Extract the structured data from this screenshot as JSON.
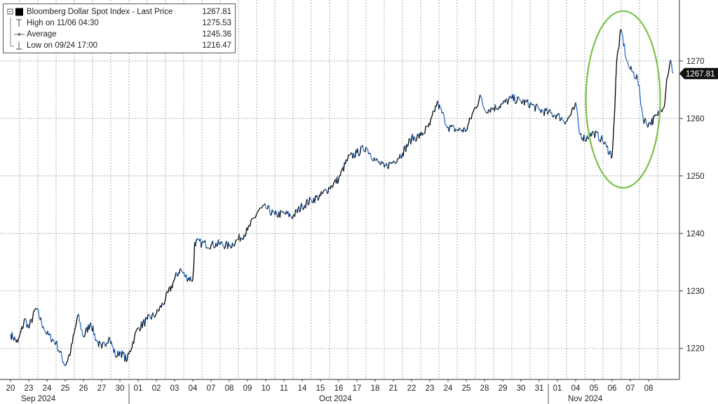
{
  "legend": {
    "items": [
      {
        "label": "Bloomberg Dollar Spot Index - Last Price",
        "value": "1267.81",
        "icon": "filled-square"
      },
      {
        "label": "High on 11/06 04:30",
        "value": "1275.53",
        "icon": "high-marker"
      },
      {
        "label": "Average",
        "value": "1245.36",
        "icon": "average-line"
      },
      {
        "label": "Low on 09/24 17:00",
        "value": "1216.47",
        "icon": "low-marker"
      }
    ]
  },
  "last_price_tag": "1267.81",
  "colors": {
    "up": "#000000",
    "down": "#2b6fc7",
    "highlight": "#7cc24a",
    "tag_bg": "#111111",
    "grid": "#9a9a9a"
  },
  "chart_data": {
    "type": "line",
    "series": [
      {
        "name": "Bloomberg Dollar Spot Index - Last Price",
        "x": [
          "Sep 20",
          "Sep 23",
          "Sep 24",
          "Sep 25",
          "Sep 26",
          "Sep 27",
          "Sep 30",
          "Oct 01",
          "Oct 02",
          "Oct 03",
          "Oct 04",
          "Oct 07",
          "Oct 08",
          "Oct 09",
          "Oct 10",
          "Oct 11",
          "Oct 14",
          "Oct 15",
          "Oct 16",
          "Oct 17",
          "Oct 18",
          "Oct 21",
          "Oct 22",
          "Oct 23",
          "Oct 24",
          "Oct 25",
          "Oct 28",
          "Oct 29",
          "Oct 30",
          "Oct 31",
          "Nov 01",
          "Nov 04",
          "Nov 05",
          "Nov 06",
          "Nov 07",
          "Nov 08"
        ],
        "points": [
          [
            0.0,
            1222.5
          ],
          [
            0.4,
            1221.0
          ],
          [
            0.8,
            1225.2
          ],
          [
            1.0,
            1223.5
          ],
          [
            1.4,
            1227.0
          ],
          [
            1.8,
            1223.8
          ],
          [
            2.0,
            1222.5
          ],
          [
            2.5,
            1221.0
          ],
          [
            3.0,
            1217.0
          ],
          [
            3.3,
            1219.5
          ],
          [
            3.7,
            1225.8
          ],
          [
            4.0,
            1222.0
          ],
          [
            4.4,
            1224.5
          ],
          [
            4.7,
            1221.5
          ],
          [
            5.0,
            1220.0
          ],
          [
            5.4,
            1222.0
          ],
          [
            5.8,
            1218.5
          ],
          [
            6.0,
            1219.5
          ],
          [
            6.4,
            1218.0
          ],
          [
            6.8,
            1222.0
          ],
          [
            7.0,
            1223.5
          ],
          [
            7.5,
            1225.0
          ],
          [
            8.0,
            1226.0
          ],
          [
            8.5,
            1228.5
          ],
          [
            9.0,
            1232.0
          ],
          [
            9.3,
            1233.8
          ],
          [
            9.6,
            1232.5
          ],
          [
            10.0,
            1232.0
          ],
          [
            10.05,
            1234.0
          ],
          [
            10.1,
            1238.5
          ],
          [
            10.5,
            1238.3
          ],
          [
            11.0,
            1238.0
          ],
          [
            11.5,
            1238.2
          ],
          [
            12.0,
            1237.8
          ],
          [
            12.5,
            1239.0
          ],
          [
            13.0,
            1240.5
          ],
          [
            13.6,
            1244.0
          ],
          [
            14.0,
            1244.5
          ],
          [
            14.5,
            1243.2
          ],
          [
            15.0,
            1243.5
          ],
          [
            15.5,
            1243.0
          ],
          [
            16.0,
            1244.8
          ],
          [
            16.5,
            1245.8
          ],
          [
            17.0,
            1246.5
          ],
          [
            17.5,
            1248.0
          ],
          [
            18.0,
            1249.5
          ],
          [
            18.5,
            1253.0
          ],
          [
            19.0,
            1254.0
          ],
          [
            19.5,
            1255.0
          ],
          [
            20.0,
            1252.8
          ],
          [
            20.5,
            1251.5
          ],
          [
            21.0,
            1252.5
          ],
          [
            21.5,
            1254.0
          ],
          [
            22.0,
            1256.5
          ],
          [
            22.5,
            1257.0
          ],
          [
            23.0,
            1258.8
          ],
          [
            23.4,
            1262.8
          ],
          [
            23.8,
            1260.0
          ],
          [
            24.0,
            1258.5
          ],
          [
            24.5,
            1258.0
          ],
          [
            25.0,
            1258.0
          ],
          [
            25.5,
            1262.0
          ],
          [
            25.8,
            1263.8
          ],
          [
            26.0,
            1261.5
          ],
          [
            26.5,
            1261.8
          ],
          [
            27.0,
            1262.5
          ],
          [
            27.5,
            1263.5
          ],
          [
            28.0,
            1263.0
          ],
          [
            28.5,
            1262.5
          ],
          [
            29.0,
            1261.5
          ],
          [
            29.5,
            1261.0
          ],
          [
            30.0,
            1260.5
          ],
          [
            30.5,
            1259.5
          ],
          [
            30.9,
            1261.5
          ],
          [
            31.0,
            1262.8
          ],
          [
            31.2,
            1257.5
          ],
          [
            31.5,
            1256.5
          ],
          [
            32.0,
            1257.5
          ],
          [
            32.4,
            1256.5
          ],
          [
            32.7,
            1255.0
          ],
          [
            33.0,
            1253.5
          ],
          [
            33.15,
            1262.0
          ],
          [
            33.25,
            1270.0
          ],
          [
            33.5,
            1275.5
          ],
          [
            33.8,
            1270.0
          ],
          [
            34.0,
            1268.5
          ],
          [
            34.4,
            1267.0
          ],
          [
            34.7,
            1260.0
          ],
          [
            35.0,
            1259.0
          ],
          [
            35.5,
            1260.5
          ],
          [
            35.9,
            1263.0
          ],
          [
            36.0,
            1267.0
          ],
          [
            36.2,
            1270.2
          ],
          [
            36.35,
            1267.81
          ]
        ]
      }
    ],
    "x_tick_labels": [
      "20",
      "23",
      "24",
      "25",
      "26",
      "27",
      "30",
      "01",
      "02",
      "03",
      "04",
      "07",
      "08",
      "09",
      "10",
      "11",
      "14",
      "15",
      "16",
      "17",
      "18",
      "21",
      "22",
      "23",
      "24",
      "25",
      "28",
      "29",
      "30",
      "31",
      "01",
      "04",
      "05",
      "06",
      "07",
      "08"
    ],
    "month_labels": [
      {
        "label": "Sep 2024",
        "first_index": 0,
        "last_index": 6
      },
      {
        "label": "Oct 2024",
        "first_index": 7,
        "last_index": 29
      },
      {
        "label": "Nov 2024",
        "first_index": 30,
        "last_index": 35
      }
    ],
    "y_ticks": [
      1220,
      1230,
      1240,
      1250,
      1260,
      1270
    ],
    "ylim": [
      1214.6,
      1280.6
    ],
    "y_axis_side": "right",
    "grid": true,
    "legend_position": "top-left",
    "annotation": {
      "type": "ellipse",
      "color": "#7cc24a",
      "around": "Nov 05 - Nov 08"
    }
  }
}
